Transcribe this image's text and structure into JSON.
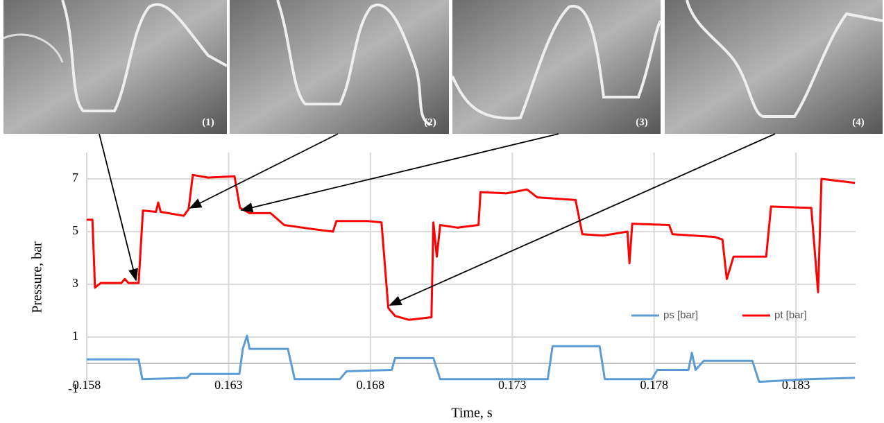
{
  "panels": [
    {
      "label": "(1)"
    },
    {
      "label": "(2)"
    },
    {
      "label": "(3)"
    },
    {
      "label": "(4)"
    }
  ],
  "chart_data": {
    "type": "line",
    "x_label": "Time, s",
    "y_label": "Pressure, bar",
    "xlim": [
      0.158,
      0.1851
    ],
    "xticks": [
      0.158,
      0.163,
      0.168,
      0.173,
      0.178,
      0.183
    ],
    "ylim": [
      -1,
      8
    ],
    "yticks": [
      -1,
      1,
      3,
      5,
      7
    ],
    "grid": true,
    "legend": "lower-right",
    "series": [
      {
        "name": "ps [bar]",
        "color": "#5b9bd5",
        "x": [
          0.158,
          0.15983,
          0.15996,
          0.16154,
          0.16167,
          0.16338,
          0.1635,
          0.16365,
          0.16374,
          0.16509,
          0.16533,
          0.16692,
          0.16716,
          0.16875,
          0.16887,
          0.17022,
          0.17046,
          0.17425,
          0.17442,
          0.17608,
          0.17626,
          0.17792,
          0.17811,
          0.17921,
          0.17933,
          0.17946,
          0.17975,
          0.18146,
          0.1817,
          0.18342,
          0.18508
        ],
        "values": [
          0.15,
          0.15,
          -0.6,
          -0.55,
          -0.4,
          -0.4,
          0.55,
          1.05,
          0.55,
          0.55,
          -0.6,
          -0.6,
          -0.3,
          -0.25,
          0.2,
          0.2,
          -0.6,
          -0.6,
          0.65,
          0.65,
          -0.6,
          -0.6,
          -0.25,
          -0.25,
          0.4,
          -0.25,
          0.1,
          0.1,
          -0.7,
          -0.6,
          -0.55
        ]
      },
      {
        "name": "pt [bar]",
        "color": "#ff0000",
        "x": [
          0.158,
          0.1582,
          0.15829,
          0.15849,
          0.15922,
          0.15934,
          0.15947,
          0.15983,
          0.15998,
          0.16044,
          0.16052,
          0.16061,
          0.16142,
          0.16159,
          0.16174,
          0.16228,
          0.16321,
          0.1634,
          0.16374,
          0.16448,
          0.16496,
          0.16594,
          0.16668,
          0.1668,
          0.1679,
          0.16839,
          0.16863,
          0.16887,
          0.16936,
          0.17015,
          0.17022,
          0.17034,
          0.17046,
          0.17107,
          0.17181,
          0.17188,
          0.17279,
          0.17352,
          0.17388,
          0.17523,
          0.17547,
          0.17621,
          0.17706,
          0.17713,
          0.17723,
          0.17853,
          0.17865,
          0.18012,
          0.18041,
          0.18056,
          0.1808,
          0.18195,
          0.18212,
          0.18354,
          0.18378,
          0.1839,
          0.18508
        ],
        "values": [
          5.45,
          5.45,
          2.87,
          3.05,
          3.05,
          3.2,
          3.05,
          3.05,
          5.8,
          5.75,
          6.1,
          5.75,
          5.6,
          5.85,
          7.15,
          7.05,
          7.1,
          5.9,
          5.7,
          5.7,
          5.25,
          5.1,
          5.0,
          5.4,
          5.4,
          5.35,
          2.1,
          1.8,
          1.65,
          1.75,
          5.35,
          4.05,
          5.25,
          5.15,
          5.25,
          6.5,
          6.45,
          6.6,
          6.3,
          6.2,
          4.9,
          4.85,
          5.0,
          3.8,
          5.3,
          5.25,
          4.9,
          4.8,
          4.7,
          3.2,
          4.05,
          4.05,
          5.95,
          5.9,
          2.7,
          7.0,
          6.85
        ]
      }
    ]
  }
}
